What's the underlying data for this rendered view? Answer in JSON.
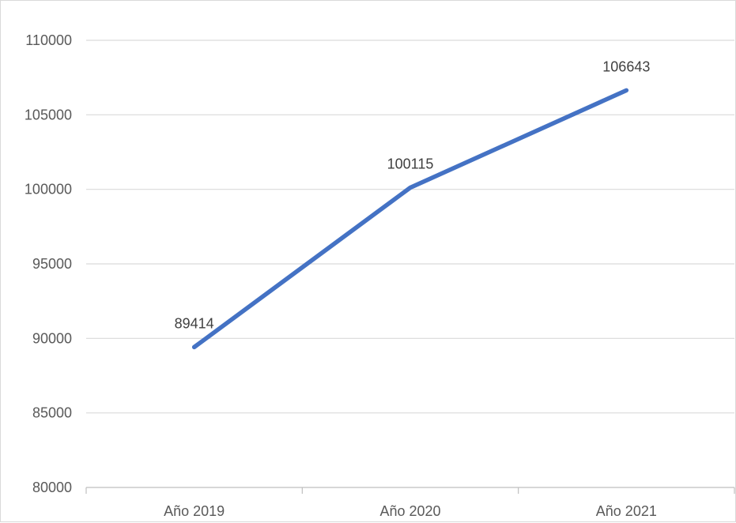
{
  "chart_data": {
    "type": "line",
    "title": "",
    "xlabel": "",
    "ylabel": "",
    "categories": [
      "Año 2019",
      "Año 2020",
      "Año 2021"
    ],
    "series": [
      {
        "values": [
          89414,
          100115,
          106643
        ],
        "color": "#4472c4"
      }
    ],
    "data_labels": [
      "89414",
      "100115",
      "106643"
    ],
    "ylim": [
      80000,
      110000
    ],
    "yticks": [
      80000,
      85000,
      90000,
      95000,
      100000,
      105000,
      110000
    ],
    "ytick_labels": [
      "80000",
      "85000",
      "90000",
      "95000",
      "100000",
      "105000",
      "110000"
    ],
    "grid": true,
    "legend": "none"
  },
  "colors": {
    "line": "#4472c4",
    "grid": "#d9d9d9",
    "axis": "#bfbfbf",
    "tick_text": "#595959",
    "label_text": "#404040"
  }
}
